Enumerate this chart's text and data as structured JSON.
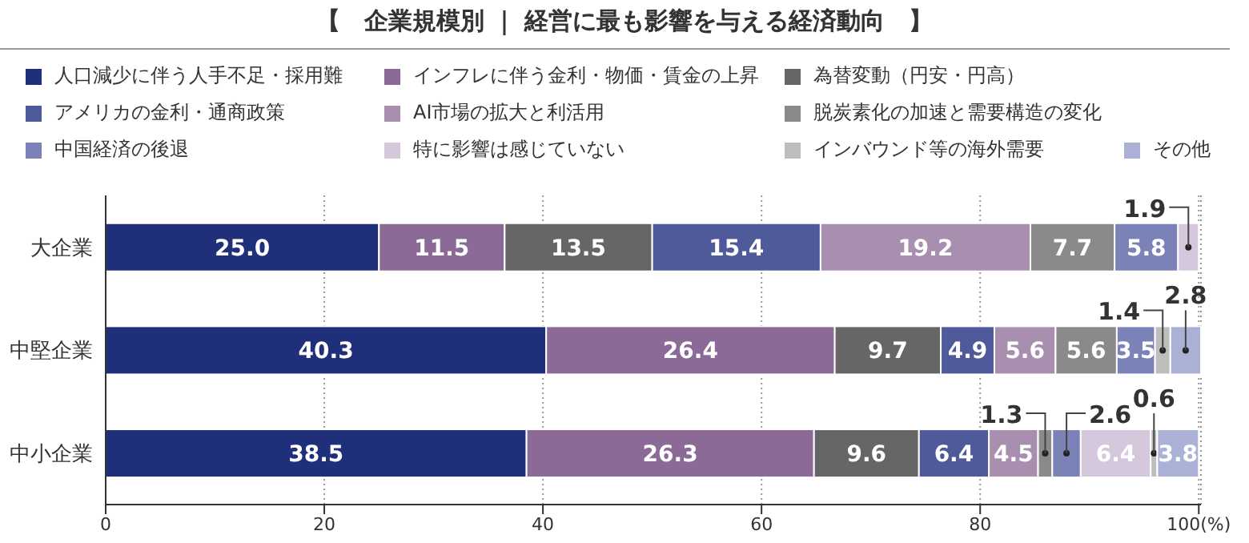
{
  "chart_data": {
    "type": "bar",
    "orientation": "horizontal",
    "stacked": true,
    "title": "【　企業規模別 ｜ 経営に最も影響を与える経済動向　】",
    "categories": [
      "大企業",
      "中堅企業",
      "中小企業"
    ],
    "series": [
      {
        "name": "人口減少に伴う人手不足・採用難",
        "color": "#1f2f7a",
        "values": [
          25.0,
          40.3,
          38.5
        ],
        "value_labels": [
          "25.0",
          "40.3",
          "38.5"
        ]
      },
      {
        "name": "インフレに伴う金利・物価・賃金の上昇",
        "color": "#8b6a97",
        "values": [
          11.5,
          26.4,
          26.3
        ],
        "value_labels": [
          "11.5",
          "26.4",
          "26.3"
        ]
      },
      {
        "name": "為替変動（円安・円高）",
        "color": "#666666",
        "values": [
          13.5,
          9.7,
          9.6
        ],
        "value_labels": [
          "13.5",
          "9.7",
          "9.6"
        ]
      },
      {
        "name": "アメリカの金利・通商政策",
        "color": "#4e5a99",
        "values": [
          15.4,
          4.9,
          6.4
        ],
        "value_labels": [
          "15.4",
          "4.9",
          "6.4"
        ]
      },
      {
        "name": "AI市場の拡大と利活用",
        "color": "#a88fb0",
        "values": [
          19.2,
          5.6,
          4.5
        ],
        "value_labels": [
          "19.2",
          "5.6",
          "4.5"
        ]
      },
      {
        "name": "脱炭素化の加速と需要構造の変化",
        "color": "#8a8a8a",
        "values": [
          7.7,
          5.6,
          1.3
        ],
        "value_labels": [
          "7.7",
          "5.6",
          "1.3"
        ]
      },
      {
        "name": "中国経済の後退",
        "color": "#7a82b8",
        "values": [
          5.8,
          3.5,
          2.6
        ],
        "value_labels": [
          "5.8",
          "3.5",
          "2.6"
        ]
      },
      {
        "name": "特に影響は感じていない",
        "color": "#d5c8dc",
        "values": [
          1.9,
          null,
          6.4
        ],
        "value_labels": [
          "1.9",
          null,
          "6.4"
        ]
      },
      {
        "name": "インバウンド等の海外需要",
        "color": "#bdbdbd",
        "values": [
          null,
          1.4,
          0.6
        ],
        "value_labels": [
          null,
          "1.4",
          "0.6"
        ]
      },
      {
        "name": "その他",
        "color": "#aab0d6",
        "values": [
          null,
          2.8,
          3.8
        ],
        "value_labels": [
          null,
          "2.8",
          "3.8"
        ]
      }
    ],
    "xlim": [
      0,
      100
    ],
    "xticks": [
      0,
      20,
      40,
      60,
      80,
      {
        "value": 100,
        "label": "100(%)"
      }
    ],
    "grid": "x",
    "legend": "top"
  }
}
